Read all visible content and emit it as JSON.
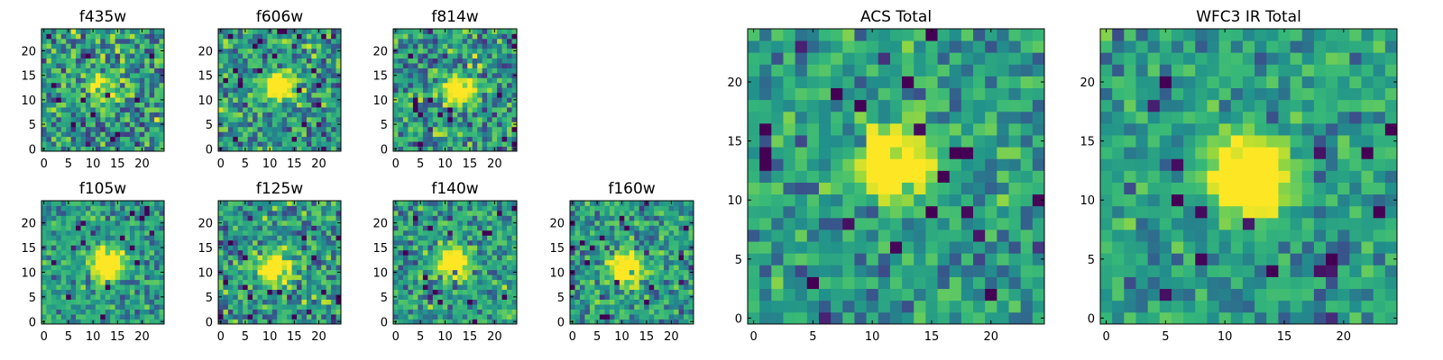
{
  "figure": {
    "panels": [
      {
        "id": "f435w",
        "title": "f435w"
      },
      {
        "id": "f606w",
        "title": "f606w"
      },
      {
        "id": "f814w",
        "title": "f814w"
      },
      {
        "id": "f105w",
        "title": "f105w"
      },
      {
        "id": "f125w",
        "title": "f125w"
      },
      {
        "id": "f140w",
        "title": "f140w"
      },
      {
        "id": "f160w",
        "title": "f160w"
      },
      {
        "id": "acs-total",
        "title": "ACS Total"
      },
      {
        "id": "wfc3-ir-total",
        "title": "WFC3 IR Total"
      }
    ]
  },
  "chart_data": [
    {
      "type": "heatmap",
      "title": "f435w",
      "colormap": "viridis",
      "grid_size": 25,
      "xlim": [
        0,
        24
      ],
      "ylim": [
        0,
        24
      ],
      "xticks": [
        0,
        5,
        10,
        15,
        20
      ],
      "yticks": [
        0,
        5,
        10,
        15,
        20
      ],
      "source_peak": [
        12,
        13
      ],
      "source_strength": 0.25,
      "noise": 0.5,
      "seed": 11
    },
    {
      "type": "heatmap",
      "title": "f606w",
      "colormap": "viridis",
      "grid_size": 25,
      "xlim": [
        0,
        24
      ],
      "ylim": [
        0,
        24
      ],
      "xticks": [
        0,
        5,
        10,
        15,
        20
      ],
      "yticks": [
        0,
        5,
        10,
        15,
        20
      ],
      "source_peak": [
        12,
        13
      ],
      "source_strength": 0.45,
      "noise": 0.45,
      "seed": 23
    },
    {
      "type": "heatmap",
      "title": "f814w",
      "colormap": "viridis",
      "grid_size": 25,
      "xlim": [
        0,
        24
      ],
      "ylim": [
        0,
        24
      ],
      "xticks": [
        0,
        5,
        10,
        15,
        20
      ],
      "yticks": [
        0,
        5,
        10,
        15,
        20
      ],
      "source_peak": [
        13,
        12
      ],
      "source_strength": 0.35,
      "noise": 0.5,
      "seed": 37
    },
    {
      "type": "heatmap",
      "title": "f105w",
      "colormap": "viridis",
      "grid_size": 25,
      "xlim": [
        0,
        24
      ],
      "ylim": [
        0,
        24
      ],
      "xticks": [
        0,
        5,
        10,
        15,
        20
      ],
      "yticks": [
        0,
        5,
        10,
        15,
        20
      ],
      "source_peak": [
        13,
        12
      ],
      "source_strength": 0.55,
      "noise": 0.35,
      "seed": 41
    },
    {
      "type": "heatmap",
      "title": "f125w",
      "colormap": "viridis",
      "grid_size": 25,
      "xlim": [
        0,
        24
      ],
      "ylim": [
        0,
        24
      ],
      "xticks": [
        0,
        5,
        10,
        15,
        20
      ],
      "yticks": [
        0,
        5,
        10,
        15,
        20
      ],
      "source_peak": [
        11,
        11
      ],
      "source_strength": 0.4,
      "noise": 0.45,
      "seed": 53
    },
    {
      "type": "heatmap",
      "title": "f140w",
      "colormap": "viridis",
      "grid_size": 25,
      "xlim": [
        0,
        24
      ],
      "ylim": [
        0,
        24
      ],
      "xticks": [
        0,
        5,
        10,
        15,
        20
      ],
      "yticks": [
        0,
        5,
        10,
        15,
        20
      ],
      "source_peak": [
        12,
        12
      ],
      "source_strength": 0.45,
      "noise": 0.4,
      "seed": 67
    },
    {
      "type": "heatmap",
      "title": "f160w",
      "colormap": "viridis",
      "grid_size": 25,
      "xlim": [
        0,
        24
      ],
      "ylim": [
        0,
        24
      ],
      "xticks": [
        0,
        5,
        10,
        15,
        20
      ],
      "yticks": [
        0,
        5,
        10,
        15,
        20
      ],
      "source_peak": [
        11,
        11
      ],
      "source_strength": 0.5,
      "noise": 0.4,
      "seed": 79
    },
    {
      "type": "heatmap",
      "title": "ACS Total",
      "colormap": "viridis",
      "grid_size": 25,
      "xlim": [
        0,
        24
      ],
      "ylim": [
        0,
        24
      ],
      "xticks": [
        0,
        5,
        10,
        15,
        20
      ],
      "yticks": [
        0,
        5,
        10,
        15,
        20
      ],
      "source_peak": [
        12,
        13
      ],
      "source_strength": 0.55,
      "noise": 0.35,
      "seed": 97
    },
    {
      "type": "heatmap",
      "title": "WFC3 IR Total",
      "colormap": "viridis",
      "grid_size": 25,
      "xlim": [
        0,
        24
      ],
      "ylim": [
        0,
        24
      ],
      "xticks": [
        0,
        5,
        10,
        15,
        20
      ],
      "yticks": [
        0,
        5,
        10,
        15,
        20
      ],
      "source_peak": [
        12,
        12
      ],
      "source_strength": 0.6,
      "noise": 0.3,
      "seed": 113
    }
  ]
}
